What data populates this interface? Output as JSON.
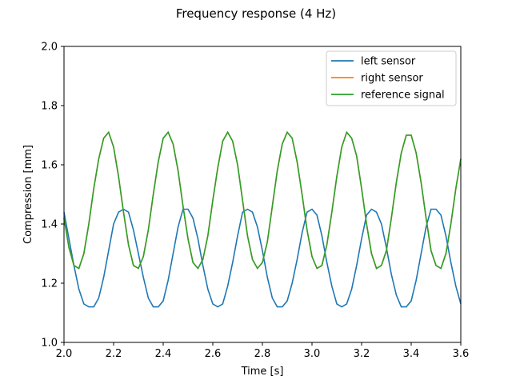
{
  "chart_data": {
    "type": "line",
    "title": "Frequency response (4 Hz)",
    "xlabel": "Time [s]",
    "ylabel": "Compression [mm]",
    "xlim": [
      2.0,
      3.6
    ],
    "ylim": [
      1.0,
      2.0
    ],
    "xticks": [
      "2.0",
      "2.2",
      "2.4",
      "2.6",
      "2.8",
      "3.0",
      "3.2",
      "3.4",
      "3.6"
    ],
    "yticks": [
      "1.0",
      "1.2",
      "1.4",
      "1.6",
      "1.8",
      "2.0"
    ],
    "grid": false,
    "legend_position": "top-right",
    "x": [
      2.0,
      2.02,
      2.04,
      2.06,
      2.08,
      2.1,
      2.12,
      2.14,
      2.16,
      2.18,
      2.2,
      2.22,
      2.24,
      2.26,
      2.28,
      2.3,
      2.32,
      2.34,
      2.36,
      2.38,
      2.4,
      2.42,
      2.44,
      2.46,
      2.48,
      2.5,
      2.52,
      2.54,
      2.56,
      2.58,
      2.6,
      2.62,
      2.64,
      2.66,
      2.68,
      2.7,
      2.72,
      2.74,
      2.76,
      2.78,
      2.8,
      2.82,
      2.84,
      2.86,
      2.88,
      2.9,
      2.92,
      2.94,
      2.96,
      2.98,
      3.0,
      3.02,
      3.04,
      3.06,
      3.08,
      3.1,
      3.12,
      3.14,
      3.16,
      3.18,
      3.2,
      3.22,
      3.24,
      3.26,
      3.28,
      3.3,
      3.32,
      3.34,
      3.36,
      3.38,
      3.4,
      3.42,
      3.44,
      3.46,
      3.48,
      3.5,
      3.52,
      3.54,
      3.56,
      3.58,
      3.6
    ],
    "series": [
      {
        "name": "left sensor",
        "color": "#1f77b4",
        "values": [
          1.44,
          1.35,
          1.26,
          1.18,
          1.13,
          1.12,
          1.12,
          1.15,
          1.22,
          1.31,
          1.4,
          1.44,
          1.45,
          1.44,
          1.38,
          1.3,
          1.22,
          1.15,
          1.12,
          1.12,
          1.14,
          1.21,
          1.3,
          1.39,
          1.45,
          1.45,
          1.42,
          1.35,
          1.26,
          1.18,
          1.13,
          1.12,
          1.13,
          1.19,
          1.27,
          1.36,
          1.44,
          1.45,
          1.44,
          1.39,
          1.31,
          1.22,
          1.15,
          1.12,
          1.12,
          1.14,
          1.2,
          1.28,
          1.37,
          1.44,
          1.45,
          1.43,
          1.36,
          1.27,
          1.19,
          1.13,
          1.12,
          1.13,
          1.18,
          1.26,
          1.35,
          1.43,
          1.45,
          1.44,
          1.4,
          1.32,
          1.23,
          1.16,
          1.12,
          1.12,
          1.14,
          1.21,
          1.3,
          1.39,
          1.45,
          1.45,
          1.43,
          1.36,
          1.27,
          1.19,
          1.13
        ]
      },
      {
        "name": "right sensor",
        "color": "#ff7f0e",
        "values": [
          1.42,
          1.32,
          1.26,
          1.25,
          1.3,
          1.4,
          1.52,
          1.62,
          1.69,
          1.71,
          1.66,
          1.56,
          1.44,
          1.33,
          1.26,
          1.25,
          1.29,
          1.38,
          1.5,
          1.61,
          1.69,
          1.71,
          1.67,
          1.58,
          1.46,
          1.35,
          1.27,
          1.25,
          1.28,
          1.36,
          1.48,
          1.59,
          1.68,
          1.71,
          1.68,
          1.6,
          1.48,
          1.36,
          1.28,
          1.25,
          1.27,
          1.34,
          1.46,
          1.58,
          1.67,
          1.71,
          1.69,
          1.61,
          1.5,
          1.38,
          1.29,
          1.25,
          1.26,
          1.33,
          1.44,
          1.56,
          1.66,
          1.71,
          1.69,
          1.63,
          1.52,
          1.4,
          1.3,
          1.25,
          1.26,
          1.31,
          1.42,
          1.54,
          1.64,
          1.7,
          1.7,
          1.64,
          1.54,
          1.42,
          1.31,
          1.26,
          1.25,
          1.3,
          1.4,
          1.52,
          1.62
        ]
      },
      {
        "name": "reference signal",
        "color": "#2ca02c",
        "values": [
          1.42,
          1.32,
          1.26,
          1.25,
          1.3,
          1.4,
          1.52,
          1.62,
          1.69,
          1.71,
          1.66,
          1.56,
          1.44,
          1.33,
          1.26,
          1.25,
          1.29,
          1.38,
          1.5,
          1.61,
          1.69,
          1.71,
          1.67,
          1.58,
          1.46,
          1.35,
          1.27,
          1.25,
          1.28,
          1.36,
          1.48,
          1.59,
          1.68,
          1.71,
          1.68,
          1.6,
          1.48,
          1.36,
          1.28,
          1.25,
          1.27,
          1.34,
          1.46,
          1.58,
          1.67,
          1.71,
          1.69,
          1.61,
          1.5,
          1.38,
          1.29,
          1.25,
          1.26,
          1.33,
          1.44,
          1.56,
          1.66,
          1.71,
          1.69,
          1.63,
          1.52,
          1.4,
          1.3,
          1.25,
          1.26,
          1.31,
          1.42,
          1.54,
          1.64,
          1.7,
          1.7,
          1.64,
          1.54,
          1.42,
          1.31,
          1.26,
          1.25,
          1.3,
          1.4,
          1.52,
          1.62
        ]
      }
    ]
  }
}
